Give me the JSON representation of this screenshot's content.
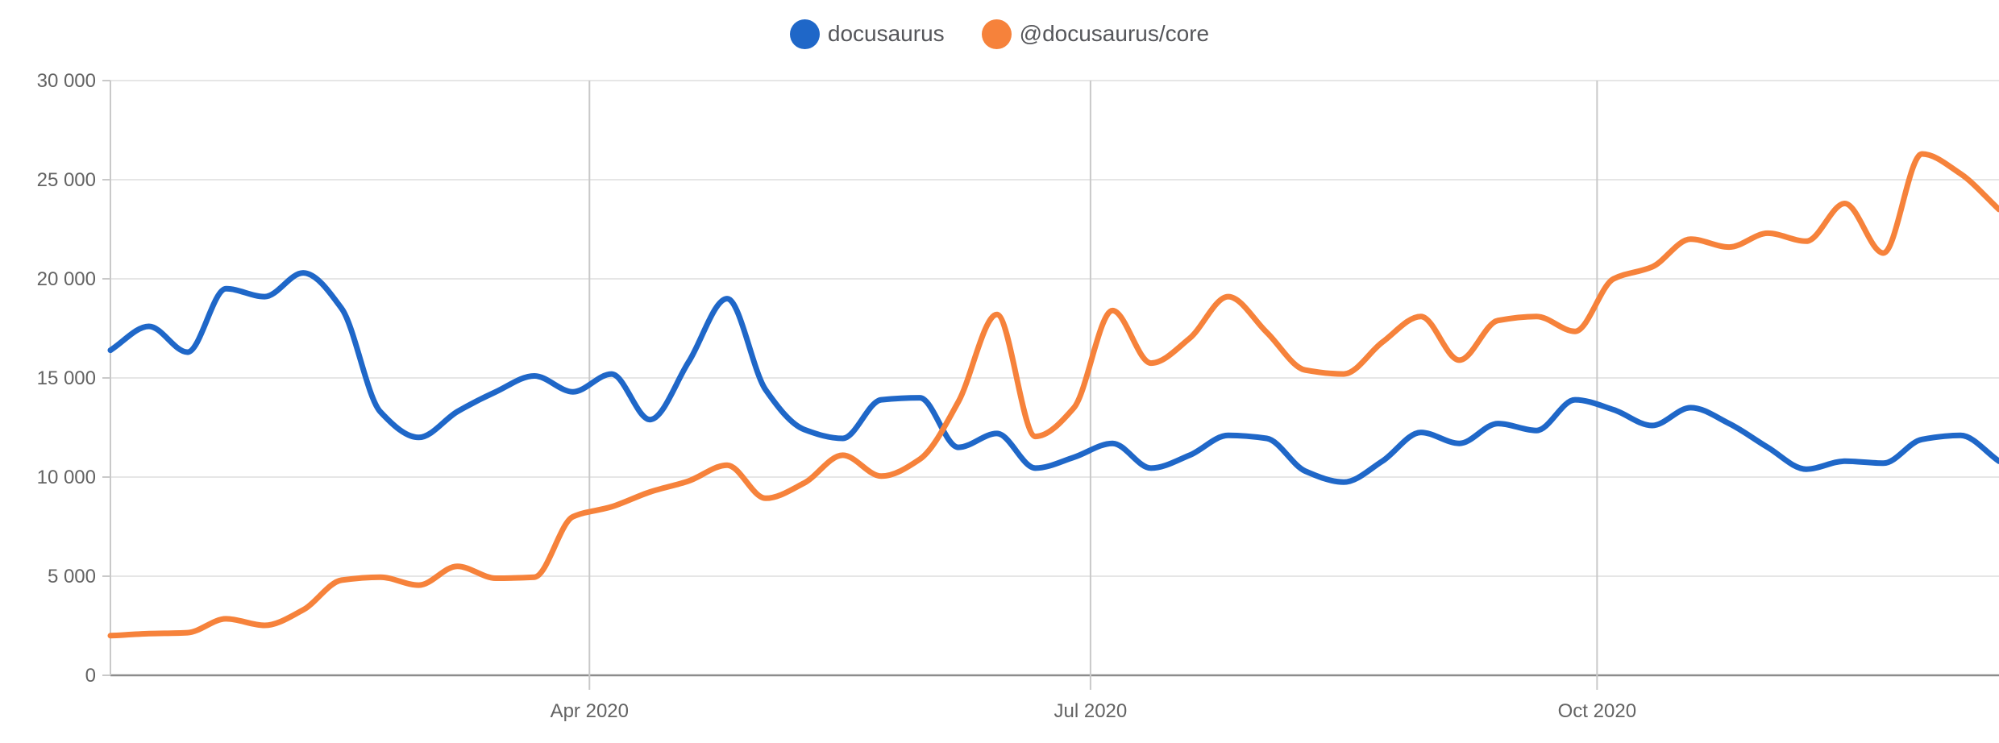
{
  "chart_data": {
    "type": "line",
    "title": "",
    "xlabel": "",
    "ylabel": "",
    "ylim": [
      0,
      30000
    ],
    "grid": true,
    "legend_position": "top-center",
    "x": [
      "2020-01-05",
      "2020-01-12",
      "2020-01-19",
      "2020-01-26",
      "2020-02-02",
      "2020-02-09",
      "2020-02-16",
      "2020-02-23",
      "2020-03-01",
      "2020-03-08",
      "2020-03-15",
      "2020-03-22",
      "2020-03-29",
      "2020-04-05",
      "2020-04-12",
      "2020-04-19",
      "2020-04-26",
      "2020-05-03",
      "2020-05-10",
      "2020-05-17",
      "2020-05-24",
      "2020-05-31",
      "2020-06-07",
      "2020-06-14",
      "2020-06-21",
      "2020-06-28",
      "2020-07-05",
      "2020-07-12",
      "2020-07-19",
      "2020-07-26",
      "2020-08-02",
      "2020-08-09",
      "2020-08-16",
      "2020-08-23",
      "2020-08-30",
      "2020-09-06",
      "2020-09-13",
      "2020-09-20",
      "2020-09-27",
      "2020-10-04",
      "2020-10-11",
      "2020-10-18",
      "2020-10-25",
      "2020-11-01",
      "2020-11-08",
      "2020-11-15",
      "2020-11-22",
      "2020-11-29",
      "2020-12-06",
      "2020-12-13"
    ],
    "series": [
      {
        "name": "docusaurus",
        "color": "#1f67c8",
        "values": [
          16400,
          17600,
          16300,
          19500,
          19100,
          20300,
          18500,
          13300,
          12000,
          13300,
          14300,
          15100,
          14300,
          15200,
          12900,
          15800,
          19000,
          14400,
          12400,
          11950,
          13900,
          14000,
          11500,
          12200,
          10450,
          11000,
          11700,
          10450,
          11100,
          12100,
          11950,
          10300,
          9750,
          10800,
          12250,
          11700,
          12700,
          12350,
          13900,
          13400,
          12600,
          13500,
          12700,
          11500,
          10400,
          10800,
          10700,
          11900,
          12100,
          10800
        ]
      },
      {
        "name": "@docusaurus/core",
        "color": "#f6823b",
        "values": [
          2000,
          2100,
          2150,
          2850,
          2520,
          3300,
          4800,
          4950,
          4550,
          5500,
          4900,
          4950,
          8000,
          8500,
          9250,
          9800,
          10600,
          8930,
          9700,
          11100,
          10050,
          10900,
          13800,
          18200,
          12050,
          13500,
          18400,
          15750,
          17000,
          19100,
          17300,
          15400,
          15200,
          16800,
          18100,
          15900,
          17900,
          18100,
          17350,
          20000,
          20600,
          22000,
          21600,
          22300,
          21900,
          23800,
          21300,
          26300,
          25300,
          23500
        ]
      }
    ],
    "y_ticks": [
      {
        "value": 0,
        "label": "0"
      },
      {
        "value": 5000,
        "label": "5 000"
      },
      {
        "value": 10000,
        "label": "10 000"
      },
      {
        "value": 15000,
        "label": "15 000"
      },
      {
        "value": 20000,
        "label": "20 000"
      },
      {
        "value": 25000,
        "label": "25 000"
      },
      {
        "value": 30000,
        "label": "30 000"
      }
    ],
    "x_ticks": [
      {
        "date": "2020-04-01",
        "label": "Apr 2020"
      },
      {
        "date": "2020-07-01",
        "label": "Jul 2020"
      },
      {
        "date": "2020-10-01",
        "label": "Oct 2020"
      }
    ],
    "axis": {
      "grid_color": "#e6e6e6",
      "month_line_color": "#c9c9c9",
      "axis_border_color": "#c9c9c9",
      "baseline_color": "#8c8c8c",
      "tick_text_color": "#636363"
    }
  }
}
